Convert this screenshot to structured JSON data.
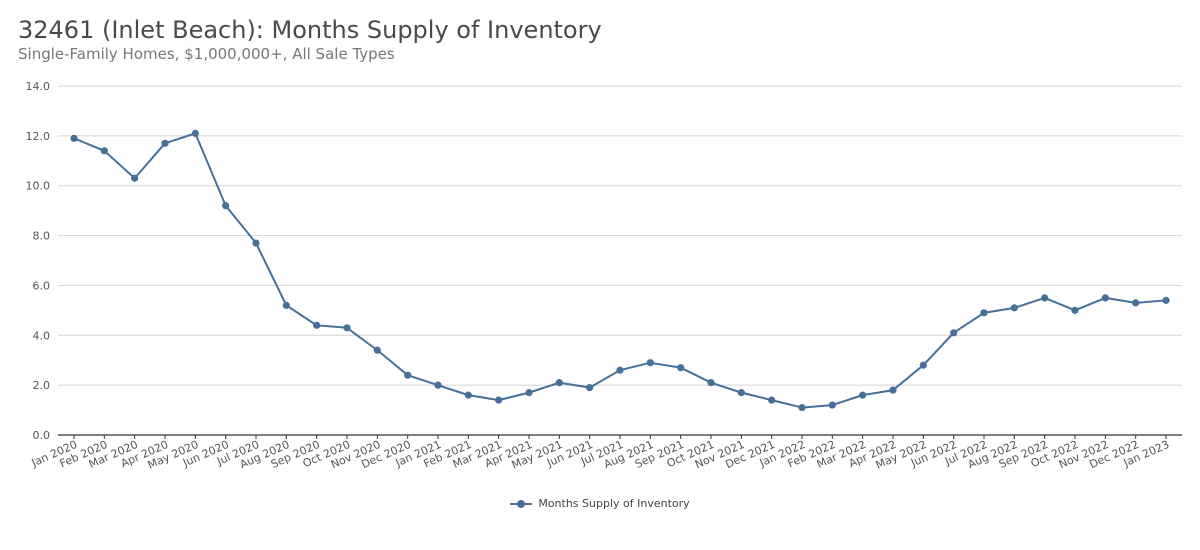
{
  "colors": {
    "series": "#46709a",
    "grid": "#d4d4d4",
    "axis": "#333333"
  },
  "header": {
    "title": "32461 (Inlet Beach): Months Supply of Inventory",
    "subtitle": "Single-Family Homes, $1,000,000+, All Sale Types"
  },
  "legend": {
    "label": "Months Supply of Inventory"
  },
  "chart_data": {
    "type": "line",
    "title": "32461 (Inlet Beach): Months Supply of Inventory",
    "subtitle": "Single-Family Homes, $1,000,000+, All Sale Types",
    "xlabel": "",
    "ylabel": "",
    "ylim": [
      0,
      14
    ],
    "yticks": [
      "0.0",
      "2.0",
      "4.0",
      "6.0",
      "8.0",
      "10.0",
      "12.0",
      "14.0"
    ],
    "grid": true,
    "legend_position": "bottom-center",
    "categories": [
      "Jan 2020",
      "Feb 2020",
      "Mar 2020",
      "Apr 2020",
      "May 2020",
      "Jun 2020",
      "Jul 2020",
      "Aug 2020",
      "Sep 2020",
      "Oct 2020",
      "Nov 2020",
      "Dec 2020",
      "Jan 2021",
      "Feb 2021",
      "Mar 2021",
      "Apr 2021",
      "May 2021",
      "Jun 2021",
      "Jul 2021",
      "Aug 2021",
      "Sep 2021",
      "Oct 2021",
      "Nov 2021",
      "Dec 2021",
      "Jan 2022",
      "Feb 2022",
      "Mar 2022",
      "Apr 2022",
      "May 2022",
      "Jun 2022",
      "Jul 2022",
      "Aug 2022",
      "Sep 2022",
      "Oct 2022",
      "Nov 2022",
      "Dec 2022",
      "Jan 2023"
    ],
    "series": [
      {
        "name": "Months Supply of Inventory",
        "values": [
          11.9,
          11.4,
          10.3,
          11.7,
          12.1,
          9.2,
          7.7,
          5.2,
          4.4,
          4.3,
          3.4,
          2.4,
          2.0,
          1.6,
          1.4,
          1.7,
          2.1,
          1.9,
          2.6,
          2.9,
          2.7,
          2.1,
          1.7,
          1.4,
          1.1,
          1.2,
          1.6,
          1.8,
          2.8,
          4.1,
          4.9,
          5.1,
          5.5,
          5.0,
          5.5,
          5.3,
          5.4
        ]
      }
    ]
  }
}
